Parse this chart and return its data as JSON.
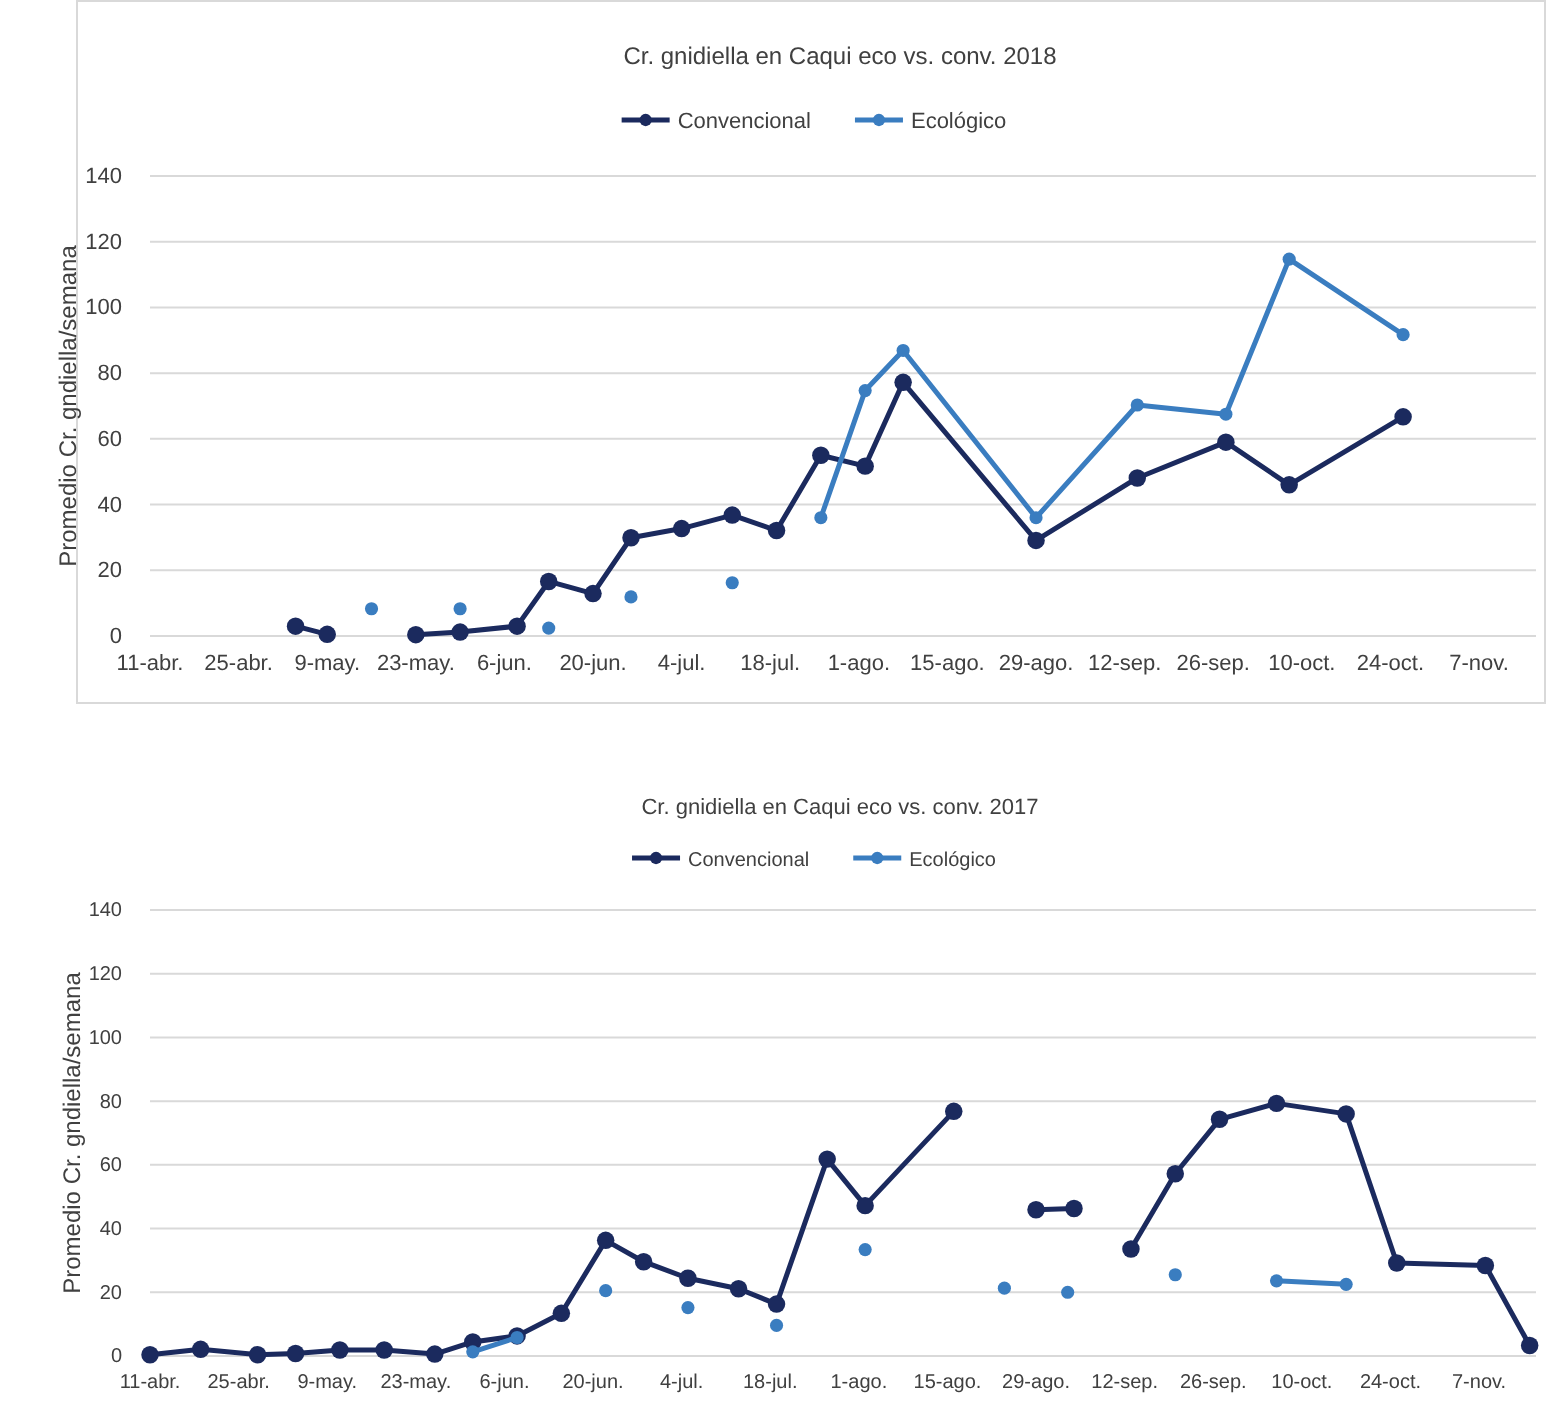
{
  "chart_data": [
    {
      "type": "line",
      "title": "Cr. gnidiella en Caqui eco vs. conv. 2018",
      "ylabel": "Promedio Cr. gndiella/semana",
      "legend": "top",
      "grid": "y",
      "marker": "circle",
      "line_style": "solid",
      "x": [
        "2018-05-04",
        "2018-05-09",
        "2018-05-16",
        "2018-05-23",
        "2018-05-30",
        "2018-06-08",
        "2018-06-13",
        "2018-06-20",
        "2018-06-26",
        "2018-07-04",
        "2018-07-12",
        "2018-07-19",
        "2018-07-26",
        "2018-08-02",
        "2018-08-08",
        "2018-08-29",
        "2018-09-14",
        "2018-09-28",
        "2018-10-08",
        "2018-10-26"
      ],
      "series": [
        {
          "name": "Convencional",
          "color": "#1b2a5e",
          "values": [
            3,
            0.5,
            null,
            0.4,
            1.2,
            3,
            16.6,
            12.9,
            29.9,
            32.7,
            36.8,
            32.1,
            55,
            51.7,
            77.2,
            29.1,
            48.1,
            59,
            46,
            66.7
          ]
        },
        {
          "name": "Ecológico",
          "color": "#3a7dc0",
          "values": [
            null,
            null,
            8.3,
            null,
            8.3,
            null,
            2.4,
            null,
            11.9,
            null,
            16.2,
            null,
            36,
            74.7,
            86.9,
            36,
            70.3,
            67.5,
            114.7,
            91.7
          ]
        }
      ],
      "xlim": [
        "2018-04-11",
        "2018-11-16"
      ],
      "xticks": [
        {
          "value": "2018-04-11",
          "label": "11-abr."
        },
        {
          "value": "2018-04-25",
          "label": "25-abr."
        },
        {
          "value": "2018-05-09",
          "label": "9-may."
        },
        {
          "value": "2018-05-23",
          "label": "23-may."
        },
        {
          "value": "2018-06-06",
          "label": "6-jun."
        },
        {
          "value": "2018-06-20",
          "label": "20-jun."
        },
        {
          "value": "2018-07-04",
          "label": "4-jul."
        },
        {
          "value": "2018-07-18",
          "label": "18-jul."
        },
        {
          "value": "2018-08-01",
          "label": "1-ago."
        },
        {
          "value": "2018-08-15",
          "label": "15-ago."
        },
        {
          "value": "2018-08-29",
          "label": "29-ago."
        },
        {
          "value": "2018-09-12",
          "label": "12-sep."
        },
        {
          "value": "2018-09-26",
          "label": "26-sep."
        },
        {
          "value": "2018-10-10",
          "label": "10-oct."
        },
        {
          "value": "2018-10-24",
          "label": "24-oct."
        },
        {
          "value": "2018-11-07",
          "label": "7-nov."
        }
      ],
      "ylim": [
        0,
        140
      ],
      "yticks": [
        0,
        20,
        40,
        60,
        80,
        100,
        120,
        140
      ]
    },
    {
      "type": "line",
      "title": "Cr. gnidiella en Caqui eco vs. conv. 2017",
      "ylabel": "Promedio Cr. gndiella/semana",
      "legend": "top",
      "grid": "y",
      "marker": "circle",
      "line_style": "solid",
      "series": [
        {
          "name": "Convencional",
          "color": "#1b2a5e",
          "x": [
            "2017-04-11",
            "2017-04-19",
            "2017-04-28",
            "2017-05-04",
            "2017-05-11",
            "2017-05-18",
            "2017-05-26",
            "2017-06-01",
            "2017-06-08",
            "2017-06-15",
            "2017-06-22",
            "2017-06-28",
            "2017-07-05",
            "2017-07-13",
            "2017-07-19",
            "2017-07-27",
            "2017-08-02",
            "2017-08-16",
            "2017-08-24",
            "2017-08-29",
            "2017-09-04",
            "2017-09-08",
            "2017-09-13",
            "2017-09-20",
            "2017-09-27",
            "2017-10-06",
            "2017-10-17",
            "2017-10-25",
            "2017-11-08",
            "2017-11-15"
          ],
          "values": [
            0.4,
            2.1,
            0.4,
            0.8,
            1.9,
            1.9,
            0.6,
            4.4,
            6.3,
            13.4,
            36.3,
            29.6,
            24.4,
            21.1,
            16.3,
            61.8,
            47.2,
            76.8,
            null,
            45.9,
            46.3,
            null,
            33.6,
            57.2,
            74.3,
            79.3,
            76,
            29.2,
            28.4,
            3.3
          ]
        },
        {
          "name": "Ecológico",
          "color": "#3a7dc0",
          "x": [
            "2017-06-01",
            "2017-06-08",
            "2017-06-15",
            "2017-06-22",
            "2017-06-28",
            "2017-07-05",
            "2017-07-13",
            "2017-07-19",
            "2017-07-27",
            "2017-08-02",
            "2017-08-16",
            "2017-08-24",
            "2017-08-29",
            "2017-09-03",
            "2017-09-13",
            "2017-09-20",
            "2017-09-27",
            "2017-10-06",
            "2017-10-17"
          ],
          "values": [
            1.3,
            5.8,
            null,
            20.5,
            null,
            15.2,
            null,
            9.6,
            null,
            33.4,
            null,
            21.3,
            null,
            20,
            null,
            25.5,
            null,
            23.6,
            22.5
          ]
        }
      ],
      "xlim": [
        "2017-04-11",
        "2017-11-16"
      ],
      "xticks": [
        {
          "value": "2017-04-11",
          "label": "11-abr."
        },
        {
          "value": "2017-04-25",
          "label": "25-abr."
        },
        {
          "value": "2017-05-09",
          "label": "9-may."
        },
        {
          "value": "2017-05-23",
          "label": "23-may."
        },
        {
          "value": "2017-06-06",
          "label": "6-jun."
        },
        {
          "value": "2017-06-20",
          "label": "20-jun."
        },
        {
          "value": "2017-07-04",
          "label": "4-jul."
        },
        {
          "value": "2017-07-18",
          "label": "18-jul."
        },
        {
          "value": "2017-08-01",
          "label": "1-ago."
        },
        {
          "value": "2017-08-15",
          "label": "15-ago."
        },
        {
          "value": "2017-08-29",
          "label": "29-ago."
        },
        {
          "value": "2017-09-12",
          "label": "12-sep."
        },
        {
          "value": "2017-09-26",
          "label": "26-sep."
        },
        {
          "value": "2017-10-10",
          "label": "10-oct."
        },
        {
          "value": "2017-10-24",
          "label": "24-oct."
        },
        {
          "value": "2017-11-07",
          "label": "7-nov."
        }
      ],
      "ylim": [
        0,
        140
      ],
      "yticks": [
        0,
        20,
        40,
        60,
        80,
        100,
        120,
        140
      ]
    }
  ]
}
